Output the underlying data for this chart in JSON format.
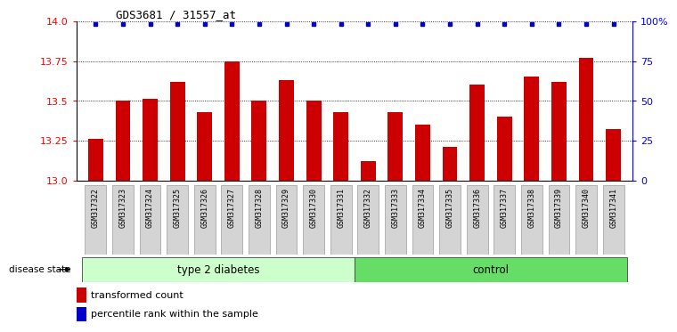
{
  "title": "GDS3681 / 31557_at",
  "samples": [
    "GSM317322",
    "GSM317323",
    "GSM317324",
    "GSM317325",
    "GSM317326",
    "GSM317327",
    "GSM317328",
    "GSM317329",
    "GSM317330",
    "GSM317331",
    "GSM317332",
    "GSM317333",
    "GSM317334",
    "GSM317335",
    "GSM317336",
    "GSM317337",
    "GSM317338",
    "GSM317339",
    "GSM317340",
    "GSM317341"
  ],
  "values": [
    13.26,
    13.5,
    13.51,
    13.62,
    13.43,
    13.75,
    13.5,
    13.63,
    13.5,
    13.43,
    13.12,
    13.43,
    13.35,
    13.21,
    13.6,
    13.4,
    13.65,
    13.62,
    13.77,
    13.32
  ],
  "ylim_left": [
    13.0,
    14.0
  ],
  "ylim_right": [
    0,
    100
  ],
  "yticks_left": [
    13.0,
    13.25,
    13.5,
    13.75,
    14.0
  ],
  "yticks_right": [
    0,
    25,
    50,
    75,
    100
  ],
  "ytick_labels_right": [
    "0",
    "25",
    "50",
    "75",
    "100%"
  ],
  "bar_color": "#cc0000",
  "dot_color": "#0000cc",
  "group1_label": "type 2 diabetes",
  "group2_label": "control",
  "group1_n": 10,
  "group2_n": 10,
  "group1_color": "#ccffcc",
  "group2_color": "#66dd66",
  "disease_state_label": "disease state",
  "legend_bar_label": "transformed count",
  "legend_dot_label": "percentile rank within the sample",
  "background_color": "#ffffff"
}
